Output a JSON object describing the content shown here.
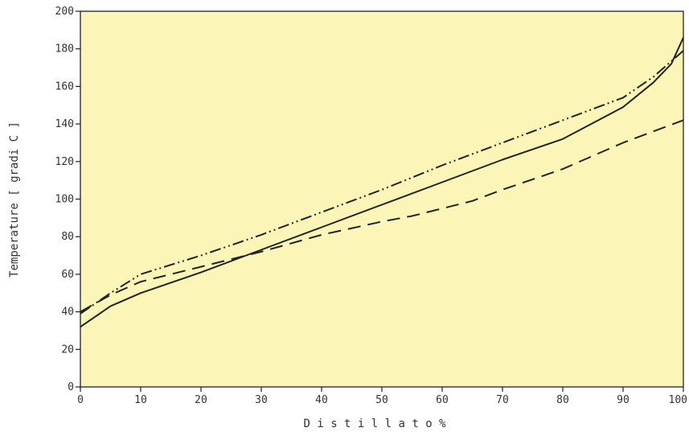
{
  "chart_data": {
    "type": "line",
    "xlabel": "D i s t i l l a t o  %",
    "ylabel": "Temperature  [ gradi C ]",
    "xlim": [
      0,
      100
    ],
    "ylim": [
      0,
      200
    ],
    "x_ticks": [
      "0",
      "10",
      "20",
      "30",
      "40",
      "50",
      "60",
      "70",
      "80",
      "90",
      "100"
    ],
    "y_ticks": [
      "0",
      "20",
      "40",
      "60",
      "80",
      "100",
      "120",
      "140",
      "160",
      "180",
      "200"
    ],
    "grid": false,
    "background": "#fbf6b8",
    "series": [
      {
        "style": "solid",
        "points": [
          [
            0,
            32
          ],
          [
            5,
            43
          ],
          [
            10,
            50
          ],
          [
            20,
            61
          ],
          [
            30,
            73
          ],
          [
            40,
            85
          ],
          [
            50,
            97
          ],
          [
            60,
            109
          ],
          [
            70,
            121
          ],
          [
            80,
            132
          ],
          [
            90,
            149
          ],
          [
            95,
            162
          ],
          [
            98,
            172
          ],
          [
            100,
            186
          ]
        ]
      },
      {
        "style": "dashed",
        "points": [
          [
            0,
            40
          ],
          [
            5,
            49
          ],
          [
            10,
            56
          ],
          [
            20,
            64
          ],
          [
            30,
            72
          ],
          [
            40,
            81
          ],
          [
            50,
            88
          ],
          [
            55,
            91
          ],
          [
            60,
            95
          ],
          [
            65,
            99
          ],
          [
            70,
            105
          ],
          [
            80,
            116
          ],
          [
            90,
            130
          ],
          [
            100,
            142
          ]
        ]
      },
      {
        "style": "dash-dot-dot",
        "points": [
          [
            0,
            39
          ],
          [
            5,
            50
          ],
          [
            10,
            60
          ],
          [
            20,
            70
          ],
          [
            30,
            81
          ],
          [
            40,
            93
          ],
          [
            50,
            105
          ],
          [
            60,
            118
          ],
          [
            70,
            130
          ],
          [
            80,
            142
          ],
          [
            90,
            154
          ],
          [
            95,
            165
          ],
          [
            100,
            179
          ]
        ]
      }
    ]
  }
}
